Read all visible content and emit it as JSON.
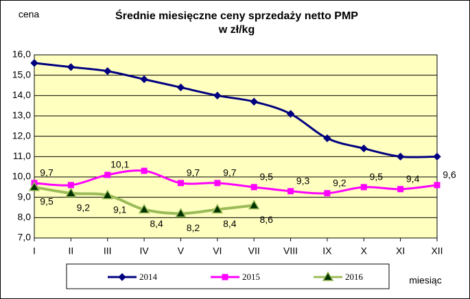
{
  "chart_data": {
    "type": "line",
    "title": "Średnie miesięczne ceny sprzedaży netto PMP",
    "subtitle": "w zł/kg",
    "y_label": "cena",
    "x_label": "miesiąc",
    "categories": [
      "I",
      "II",
      "III",
      "IV",
      "V",
      "VI",
      "VII",
      "VIII",
      "IX",
      "X",
      "XI",
      "XII"
    ],
    "ylim": [
      7,
      16
    ],
    "yticks": [
      {
        "value": 7,
        "label": "7,0"
      },
      {
        "value": 8,
        "label": "8,0"
      },
      {
        "value": 9,
        "label": "9,0"
      },
      {
        "value": 10,
        "label": "10,0"
      },
      {
        "value": 11,
        "label": "11,0"
      },
      {
        "value": 12,
        "label": "12,0"
      },
      {
        "value": 13,
        "label": "13,0"
      },
      {
        "value": 14,
        "label": "14,0"
      },
      {
        "value": 15,
        "label": "15,0"
      },
      {
        "value": 16,
        "label": "16,0"
      }
    ],
    "grid": true,
    "series": [
      {
        "name": "2014",
        "color": "#000080",
        "marker": "diamond",
        "values": [
          15.6,
          15.4,
          15.2,
          14.8,
          14.4,
          14.0,
          13.7,
          13.1,
          11.9,
          11.4,
          11.0,
          11.0
        ]
      },
      {
        "name": "2015",
        "color": "#ff00ff",
        "marker": "square",
        "values": [
          9.7,
          9.6,
          10.1,
          10.3,
          9.7,
          9.7,
          9.5,
          9.3,
          9.2,
          9.5,
          9.4,
          9.6
        ],
        "value_labels": [
          "9,7",
          null,
          "10,1",
          null,
          "9,7",
          "9,7",
          "9,5",
          "9,3",
          "9,2",
          "9,5",
          "9,4",
          "9,6"
        ]
      },
      {
        "name": "2016",
        "color": "#9bbb59",
        "marker": "triangle",
        "values": [
          9.5,
          9.2,
          9.1,
          8.4,
          8.2,
          8.4,
          8.6,
          null,
          null,
          null,
          null,
          null
        ],
        "value_labels": [
          "9,5",
          "9,2",
          "9,1",
          "8,4",
          "8,2",
          "8,4",
          "8,6",
          null,
          null,
          null,
          null,
          null
        ]
      }
    ]
  }
}
